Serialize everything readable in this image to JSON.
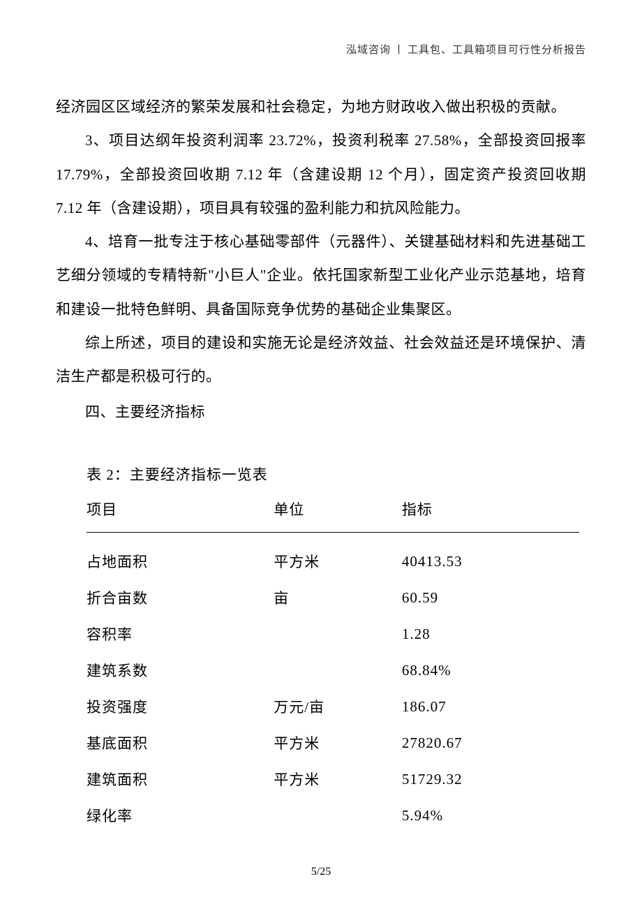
{
  "header": {
    "company": "泓域咨询",
    "separator": "丨",
    "doc_title": "工具包、工具箱项目可行性分析报告"
  },
  "paragraphs": {
    "p1": "经济园区区域经济的繁荣发展和社会稳定，为地方财政收入做出积极的贡献。",
    "p2": "3、项目达纲年投资利润率 23.72%，投资利税率 27.58%，全部投资回报率 17.79%，全部投资回收期 7.12 年（含建设期 12 个月），固定资产投资回收期 7.12 年（含建设期），项目具有较强的盈利能力和抗风险能力。",
    "p3": "4、培育一批专注于核心基础零部件（元器件）、关键基础材料和先进基础工艺细分领域的专精特新\"小巨人\"企业。依托国家新型工业化产业示范基地，培育和建设一批特色鲜明、具备国际竞争优势的基础企业集聚区。",
    "p4": "综上所述，项目的建设和实施无论是经济效益、社会效益还是环境保护、清洁生产都是积极可行的。",
    "section": "四、主要经济指标"
  },
  "table": {
    "caption": "表 2：主要经济指标一览表",
    "headers": {
      "item": "项目",
      "unit": "单位",
      "value": "指标"
    },
    "rows": [
      {
        "item": "占地面积",
        "unit": "平方米",
        "value": "40413.53"
      },
      {
        "item": "折合亩数",
        "unit": "亩",
        "value": "60.59"
      },
      {
        "item": "容积率",
        "unit": "",
        "value": "1.28"
      },
      {
        "item": "建筑系数",
        "unit": "",
        "value": "68.84%"
      },
      {
        "item": "投资强度",
        "unit": "万元/亩",
        "value": "186.07"
      },
      {
        "item": "基底面积",
        "unit": "平方米",
        "value": "27820.67"
      },
      {
        "item": "建筑面积",
        "unit": "平方米",
        "value": "51729.32"
      },
      {
        "item": "绿化率",
        "unit": "",
        "value": "5.94%"
      }
    ]
  },
  "footer": {
    "page": "5",
    "sep": "/",
    "total": "25"
  }
}
